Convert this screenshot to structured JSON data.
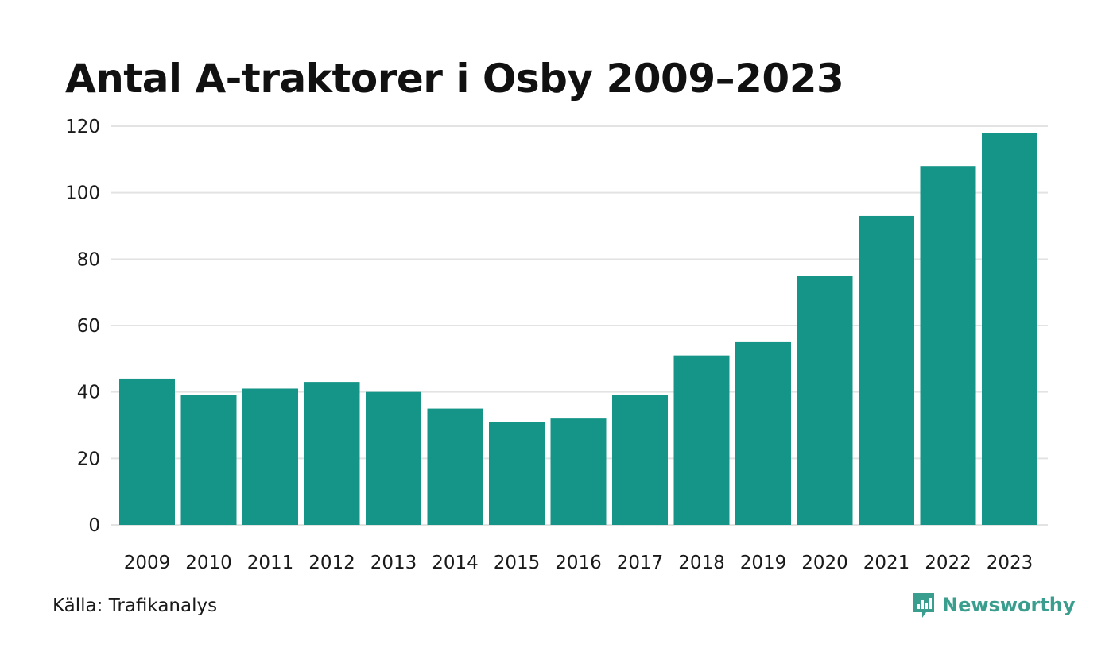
{
  "title": "Antal A-traktorer i Osby 2009–2023",
  "source": "Källa: Trafikanalys",
  "brand": "Newsworthy",
  "colors": {
    "bar": "#149587",
    "grid": "#e3e3e3",
    "brand": "#3a9e8f"
  },
  "chart_data": {
    "type": "bar",
    "title": "Antal A-traktorer i Osby 2009–2023",
    "xlabel": "",
    "ylabel": "",
    "categories": [
      "2009",
      "2010",
      "2011",
      "2012",
      "2013",
      "2014",
      "2015",
      "2016",
      "2017",
      "2018",
      "2019",
      "2020",
      "2021",
      "2022",
      "2023"
    ],
    "values": [
      44,
      39,
      41,
      43,
      40,
      35,
      31,
      32,
      39,
      51,
      55,
      75,
      93,
      108,
      118
    ],
    "ylim": [
      0,
      120
    ],
    "yticks": [
      "0",
      "20",
      "40",
      "60",
      "80",
      "100",
      "120"
    ],
    "grid": true
  }
}
